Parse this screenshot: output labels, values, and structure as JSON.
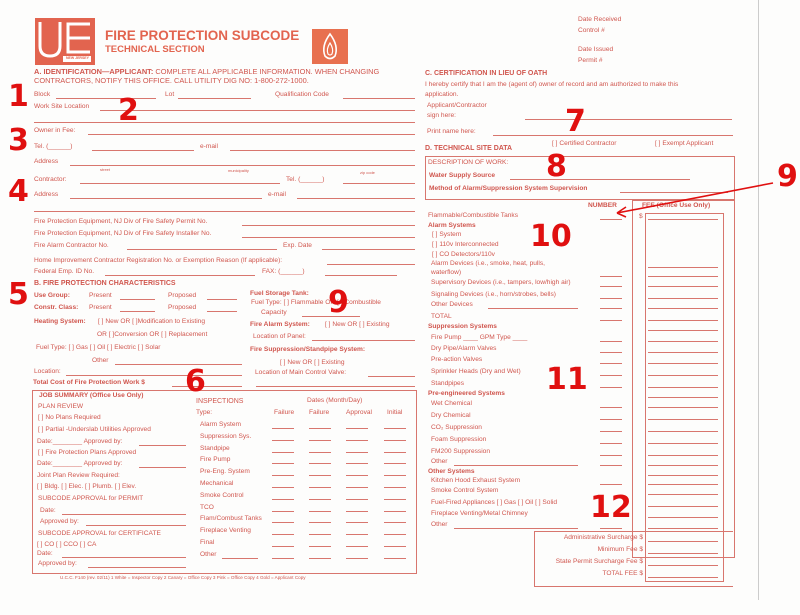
{
  "header": {
    "title": "FIRE PROTECTION SUBCODE",
    "subtitle": "TECHNICAL SECTION",
    "logo_text": "NEW JERSEY",
    "office": [
      "Date Received",
      "Control #",
      "Date Issued",
      "Permit #"
    ]
  },
  "a": {
    "heading": "A. IDENTIFICATION—APPLICANT:",
    "heading_rest": "COMPLETE ALL APPLICABLE INFORMATION. WHEN CHANGING",
    "heading_line2": "CONTRACTORS, NOTIFY THIS OFFICE. CALL UTILITY DIG NO: 1-800-272-1000.",
    "block": "Block",
    "lot": "Lot",
    "qual": "Qualification Code",
    "worksite": "Work Site Location",
    "owner": "Owner in Fee:",
    "tel": "Tel.  (______)",
    "email": "e-mail",
    "address": "Address",
    "street": "street",
    "municipality": "municipality",
    "zip": "zip code",
    "contractor": "Contractor:",
    "tel2": "Tel.  (______)",
    "address2": "Address",
    "email2": "e-mail",
    "permit_no": "Fire Protection Equipment, NJ Div of Fire Safety Permit No.",
    "installer_no": "Fire Protection Equipment, NJ Div of Fire Safety Installer No.",
    "alarm_no": "Fire Alarm Contractor No.",
    "exp": "Exp. Date",
    "home": "Home Improvement Contractor Registration No. or Exemption Reason (If applicable):",
    "fed": "Federal Emp. ID No.",
    "fax": "FAX:  (______)"
  },
  "b": {
    "heading": "B. FIRE PROTECTION CHARACTERISTICS",
    "use_group": "Use Group:",
    "present": "Present",
    "proposed": "Proposed",
    "constr": "Constr. Class:",
    "heating": "Heating System:",
    "heating_opts": "[   ] New  OR  [   ]Modification to Existing",
    "heating_opts2": "OR  [   ]Conversion  OR [   ] Replacement",
    "fuel": "Fuel Type: [   ] Gas    [   ] Oil    [   ] Electric    [   ] Solar",
    "other": "Other",
    "location": "Location:",
    "total_cost": "Total Cost of Fire Protection Work  $",
    "tank": "Fuel Storage Tank:",
    "tank_fuel": "Fuel Type:  [   ] Flammable  OR  [   ] Combustible",
    "capacity": "Capacity",
    "alarm": "Fire Alarm System:",
    "alarm_opts": "[   ] New   OR  [   ] Existing",
    "panel": "Location of Panel:",
    "suppression": "Fire Suppression/Standpipe System:",
    "supp_opts": "[   ] New    OR   [   ] Existing",
    "valve": "Location of Main Control Valve:"
  },
  "job": {
    "heading": "JOB SUMMARY (Office Use Only)",
    "plan_review": "PLAN REVIEW",
    "no_plans": "[   ] No Plans Required",
    "partial": "[   ] Partial -Underslab Utilities Approved",
    "date_approved": "Date:________ Approved by:",
    "fpp": "[   ] Fire Protection Plans Approved",
    "date_approved2": "Date:________ Approved by:",
    "joint": "Joint Plan Review Required:",
    "joint_opts": "[   ] Bldg.  [   ] Elec.  [   ] Plumb.  [   ] Elev.",
    "permit_approval": "SUBCODE APPROVAL for PERMIT",
    "date": "Date:",
    "approved_by": "Approved by:",
    "cert_approval": "SUBCODE APPROVAL for CERTIFICATE",
    "cert_opts": "[   ] CO     [   ] CCO      [   ] CA",
    "date2": "Date:",
    "approved_by2": "Approved by:",
    "inspections": "INSPECTIONS",
    "dates": "Dates (Month/Day)",
    "type": "Type:",
    "cols": [
      "Failure",
      "Failure",
      "Approval",
      "Initial"
    ],
    "rows": [
      "Alarm System",
      "Suppression Sys.",
      "Standpipe",
      "Fire Pump",
      "Pre-Eng. System",
      "Mechanical",
      "Smoke Control",
      "TCO",
      "Flam/Combust Tanks",
      "Fireplace Venting",
      "Final",
      "Other"
    ]
  },
  "footer": "U.C.C. F140 (rev. 02/11)    1 White = Inspector Copy   2 Canary = Office Copy   3 Pink = Office Copy   4 Gold = Applicant Copy",
  "c": {
    "heading": "C. CERTIFICATION IN LIEU OF OATH",
    "text1": "I hereby certify that I am the (agent of) owner of record and am authorized to make this",
    "text2": "application.",
    "applicant": "Applicant/Contractor",
    "sign": "sign here:",
    "print": "Print name here:"
  },
  "d": {
    "heading": "D.  TECHNICAL SITE DATA",
    "certified": "[   ]  Certified  Contractor",
    "exempt": "[   ]  Exempt Applicant",
    "description": "DESCRIPTION OF WORK:",
    "water": "Water Supply Source",
    "method": "Method of Alarm/Suppression System Supervision",
    "number": "NUMBER",
    "fee": "FEE (Office Use Only)",
    "dollar": "$",
    "items": [
      {
        "label": "Flammable/Combustible Tanks",
        "bold": false
      },
      {
        "label": "Alarm Systems",
        "bold": true
      },
      {
        "label": "[   ] System",
        "bold": false
      },
      {
        "label": "[   ] 110v Interconnected",
        "bold": false
      },
      {
        "label": "[   ] CO Detectors/110v",
        "bold": false
      },
      {
        "label": "Alarm Devices (i.e., smoke, heat, pulls,",
        "bold": false
      },
      {
        "label": "waterflow)",
        "bold": false
      },
      {
        "label": "Supervisory Devices (i.e., tampers, low/high air)",
        "bold": false
      },
      {
        "label": "Signaling Devices (i.e., horn/strobes, bells)",
        "bold": false
      },
      {
        "label": "Other Devices",
        "bold": false
      },
      {
        "label": "TOTAL",
        "bold": false
      },
      {
        "label": "Suppression Systems",
        "bold": true
      },
      {
        "label": "Fire Pump ____    GPM Type ____",
        "bold": false
      },
      {
        "label": "Dry Pipe/Alarm Valves",
        "bold": false
      },
      {
        "label": "Pre-action Valves",
        "bold": false
      },
      {
        "label": "Sprinkler Heads (Dry and Wet)",
        "bold": false
      },
      {
        "label": "Standpipes",
        "bold": false
      },
      {
        "label": "Pre-engineered Systems",
        "bold": true
      },
      {
        "label": "Wet Chemical",
        "bold": false
      },
      {
        "label": "Dry Chemical",
        "bold": false
      },
      {
        "label": "CO₂ Suppression",
        "bold": false
      },
      {
        "label": "Foam Suppression",
        "bold": false
      },
      {
        "label": "FM200 Suppression",
        "bold": false
      },
      {
        "label": "Other",
        "bold": false
      },
      {
        "label": "Other Systems",
        "bold": true
      },
      {
        "label": "Kitchen Hood Exhaust System",
        "bold": false
      },
      {
        "label": "Smoke Control System",
        "bold": false
      },
      {
        "label": "Fuel-Fired Appliances [   ] Gas [   ] Oil [   ] Solid",
        "bold": false
      },
      {
        "label": "Fireplace Venting/Metal Chimney",
        "bold": false
      },
      {
        "label": "Other",
        "bold": false
      }
    ],
    "fees": [
      "Administrative Surcharge $",
      "Minimum Fee $",
      "State Permit Surcharge Fee $",
      "TOTAL FEE $"
    ]
  },
  "annotations": [
    "1",
    "2",
    "3",
    "4",
    "5",
    "6",
    "7",
    "8",
    "9",
    "9",
    "10",
    "11",
    "12"
  ],
  "colors": {
    "form": "#d0564e",
    "annotation": "#e01010"
  }
}
